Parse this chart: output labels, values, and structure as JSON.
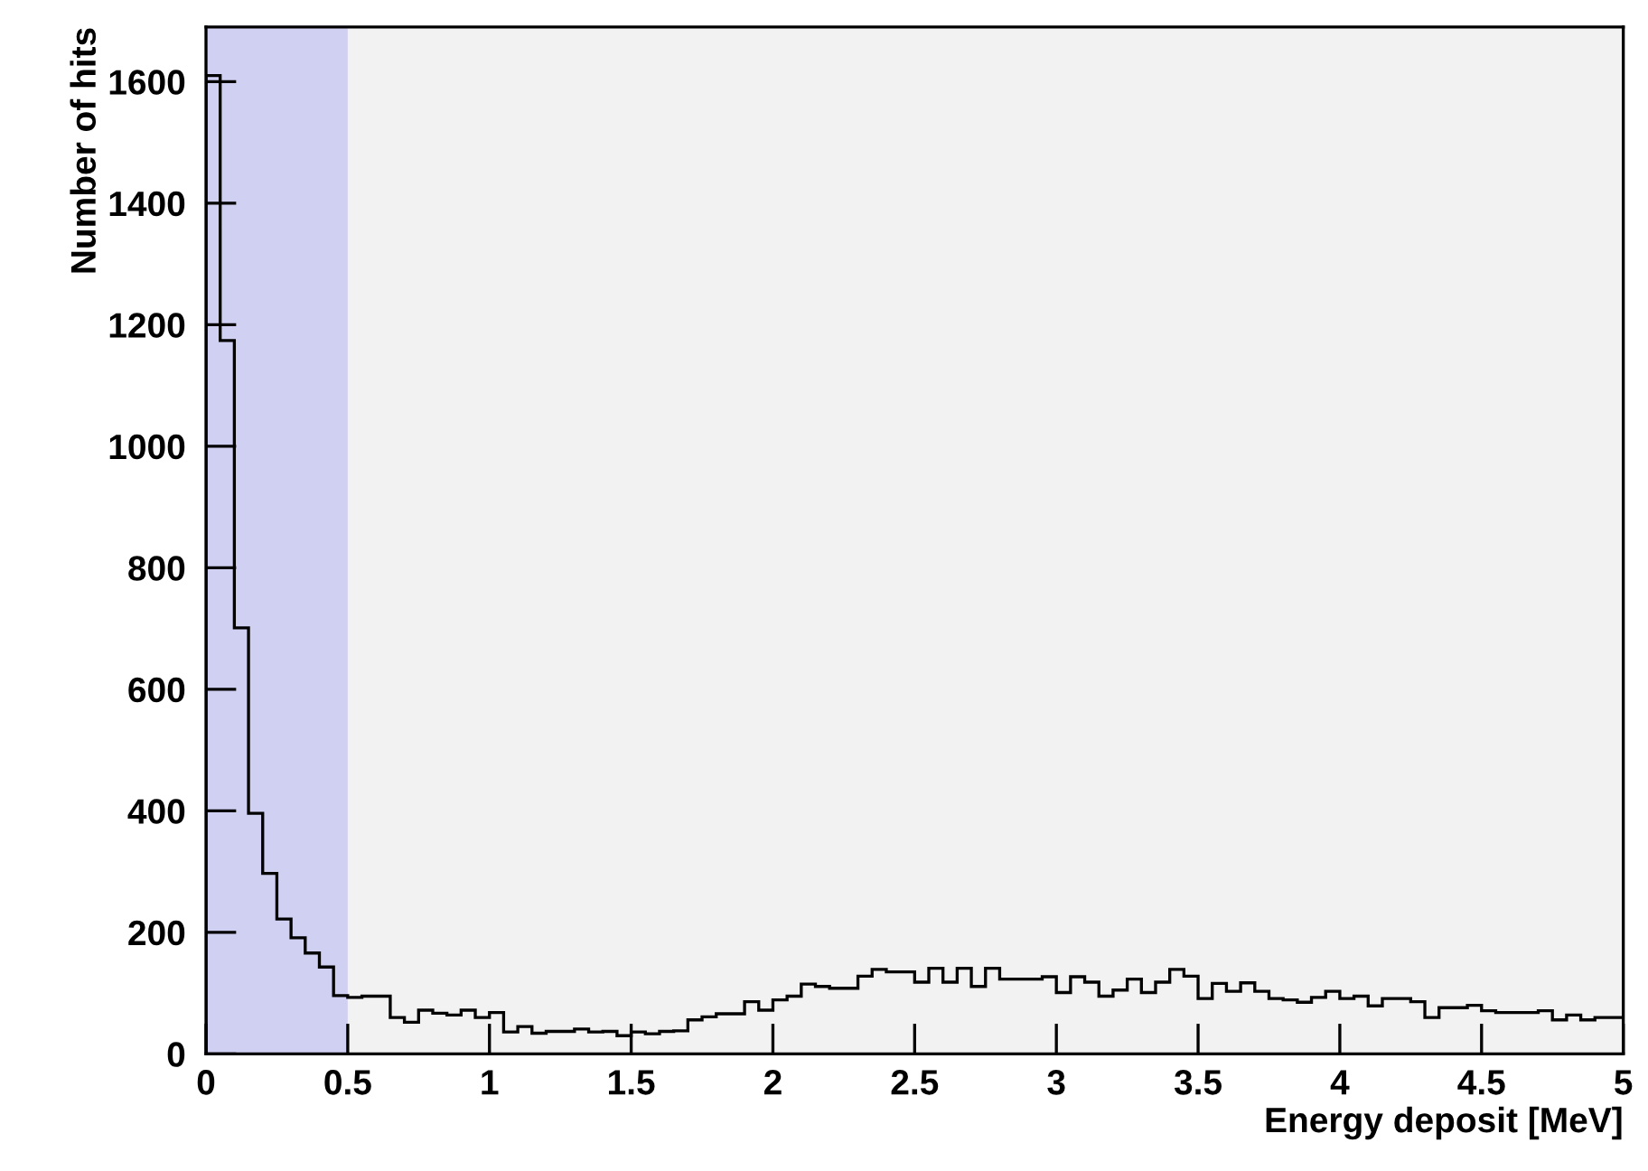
{
  "chart_data": {
    "type": "histogram",
    "xlabel": "Energy deposit [MeV]",
    "ylabel": "Number of hits",
    "bins": [
      0,
      0.05,
      0.1,
      0.15,
      0.2,
      0.25,
      0.3,
      0.35,
      0.4,
      0.45,
      0.5,
      0.55,
      0.6,
      0.65,
      0.7,
      0.75,
      0.8,
      0.85,
      0.9,
      0.95,
      1,
      1.05,
      1.1,
      1.15,
      1.2,
      1.25,
      1.3,
      1.35,
      1.4,
      1.45,
      1.5,
      1.55,
      1.6,
      1.65,
      1.7,
      1.75,
      1.8,
      1.85,
      1.9,
      1.95,
      2,
      2.05,
      2.1,
      2.15,
      2.2,
      2.25,
      2.3,
      2.35,
      2.4,
      2.45,
      2.5,
      2.55,
      2.6,
      2.65,
      2.7,
      2.75,
      2.8,
      2.85,
      2.9,
      2.95,
      3,
      3.05,
      3.1,
      3.15,
      3.2,
      3.25,
      3.3,
      3.35,
      3.4,
      3.45,
      3.5,
      3.55,
      3.6,
      3.65,
      3.7,
      3.75,
      3.8,
      3.85,
      3.9,
      3.95,
      4,
      4.05,
      4.1,
      4.15,
      4.2,
      4.25,
      4.3,
      4.35,
      4.4,
      4.45,
      4.5,
      4.55,
      4.6,
      4.65,
      4.7,
      4.75,
      4.8,
      4.85,
      4.9,
      4.95,
      5
    ],
    "values": [
      1610,
      1174,
      701,
      396,
      297,
      222,
      191,
      166,
      143,
      96,
      93,
      95,
      95,
      60,
      52,
      72,
      67,
      64,
      72,
      60,
      68,
      36,
      45,
      34,
      37,
      37,
      41,
      36,
      37,
      30,
      36,
      33,
      37,
      38,
      56,
      61,
      66,
      66,
      86,
      72,
      89,
      95,
      115,
      111,
      108,
      108,
      128,
      139,
      135,
      135,
      118,
      141,
      118,
      141,
      111,
      141,
      123,
      123,
      123,
      127,
      101,
      127,
      118,
      95,
      105,
      123,
      101,
      118,
      139,
      128,
      91,
      116,
      103,
      117,
      103,
      91,
      89,
      85,
      93,
      103,
      91,
      95,
      79,
      91,
      91,
      86,
      60,
      76,
      76,
      80,
      71,
      68,
      68,
      68,
      71,
      56,
      64,
      56,
      60,
      60
    ],
    "color": "#000000",
    "xlim": [
      0,
      5
    ],
    "ylim": [
      0,
      1690
    ],
    "xticks": [
      0,
      0.5,
      1,
      1.5,
      2,
      2.5,
      3,
      3.5,
      4,
      4.5,
      5
    ],
    "yticks": [
      0,
      200,
      400,
      600,
      800,
      1000,
      1200,
      1400,
      1600
    ],
    "bands": [
      {
        "axis": "x",
        "from": 0,
        "to": 0.5,
        "color": "#d0d0f2"
      }
    ],
    "grid": false,
    "legend": false
  }
}
